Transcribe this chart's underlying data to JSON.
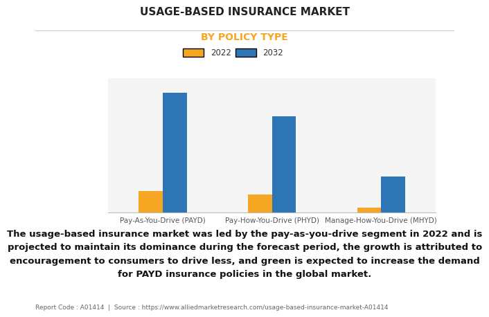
{
  "title": "USAGE-BASED INSURANCE MARKET",
  "subtitle": "BY POLICY TYPE",
  "subtitle_color": "#F5A623",
  "categories": [
    "Pay-As-You-Drive (PAYD)",
    "Pay-How-You-Drive (PHYD)",
    "Manage-How-You-Drive (MHYD)"
  ],
  "series": [
    {
      "label": "2022",
      "color": "#F5A623",
      "values": [
        0.18,
        0.15,
        0.04
      ]
    },
    {
      "label": "2032",
      "color": "#2E75B6",
      "values": [
        1.0,
        0.8,
        0.3
      ]
    }
  ],
  "ylim": [
    0,
    1.12
  ],
  "bar_width": 0.22,
  "background_color": "#FFFFFF",
  "plot_bg_color": "#F5F5F5",
  "grid_color": "#DDDDDD",
  "description_lines": [
    "The usage-based insurance market was led by the pay-as-you-drive segment in 2022 and is",
    "projected to maintain its dominance during the forecast period, the growth is attributed to",
    "encouragement to consumers to drive less, and green is expected to increase the demand",
    "for PAYD insurance policies in the global market."
  ],
  "footer": "Report Code : A01414  |  Source : https://www.alliedmarketresearch.com/usage-based-insurance-market-A01414",
  "tick_label_fontsize": 7.5,
  "title_fontsize": 11,
  "subtitle_fontsize": 10,
  "legend_fontsize": 8.5,
  "desc_fontsize": 9.5,
  "footer_fontsize": 6.5
}
